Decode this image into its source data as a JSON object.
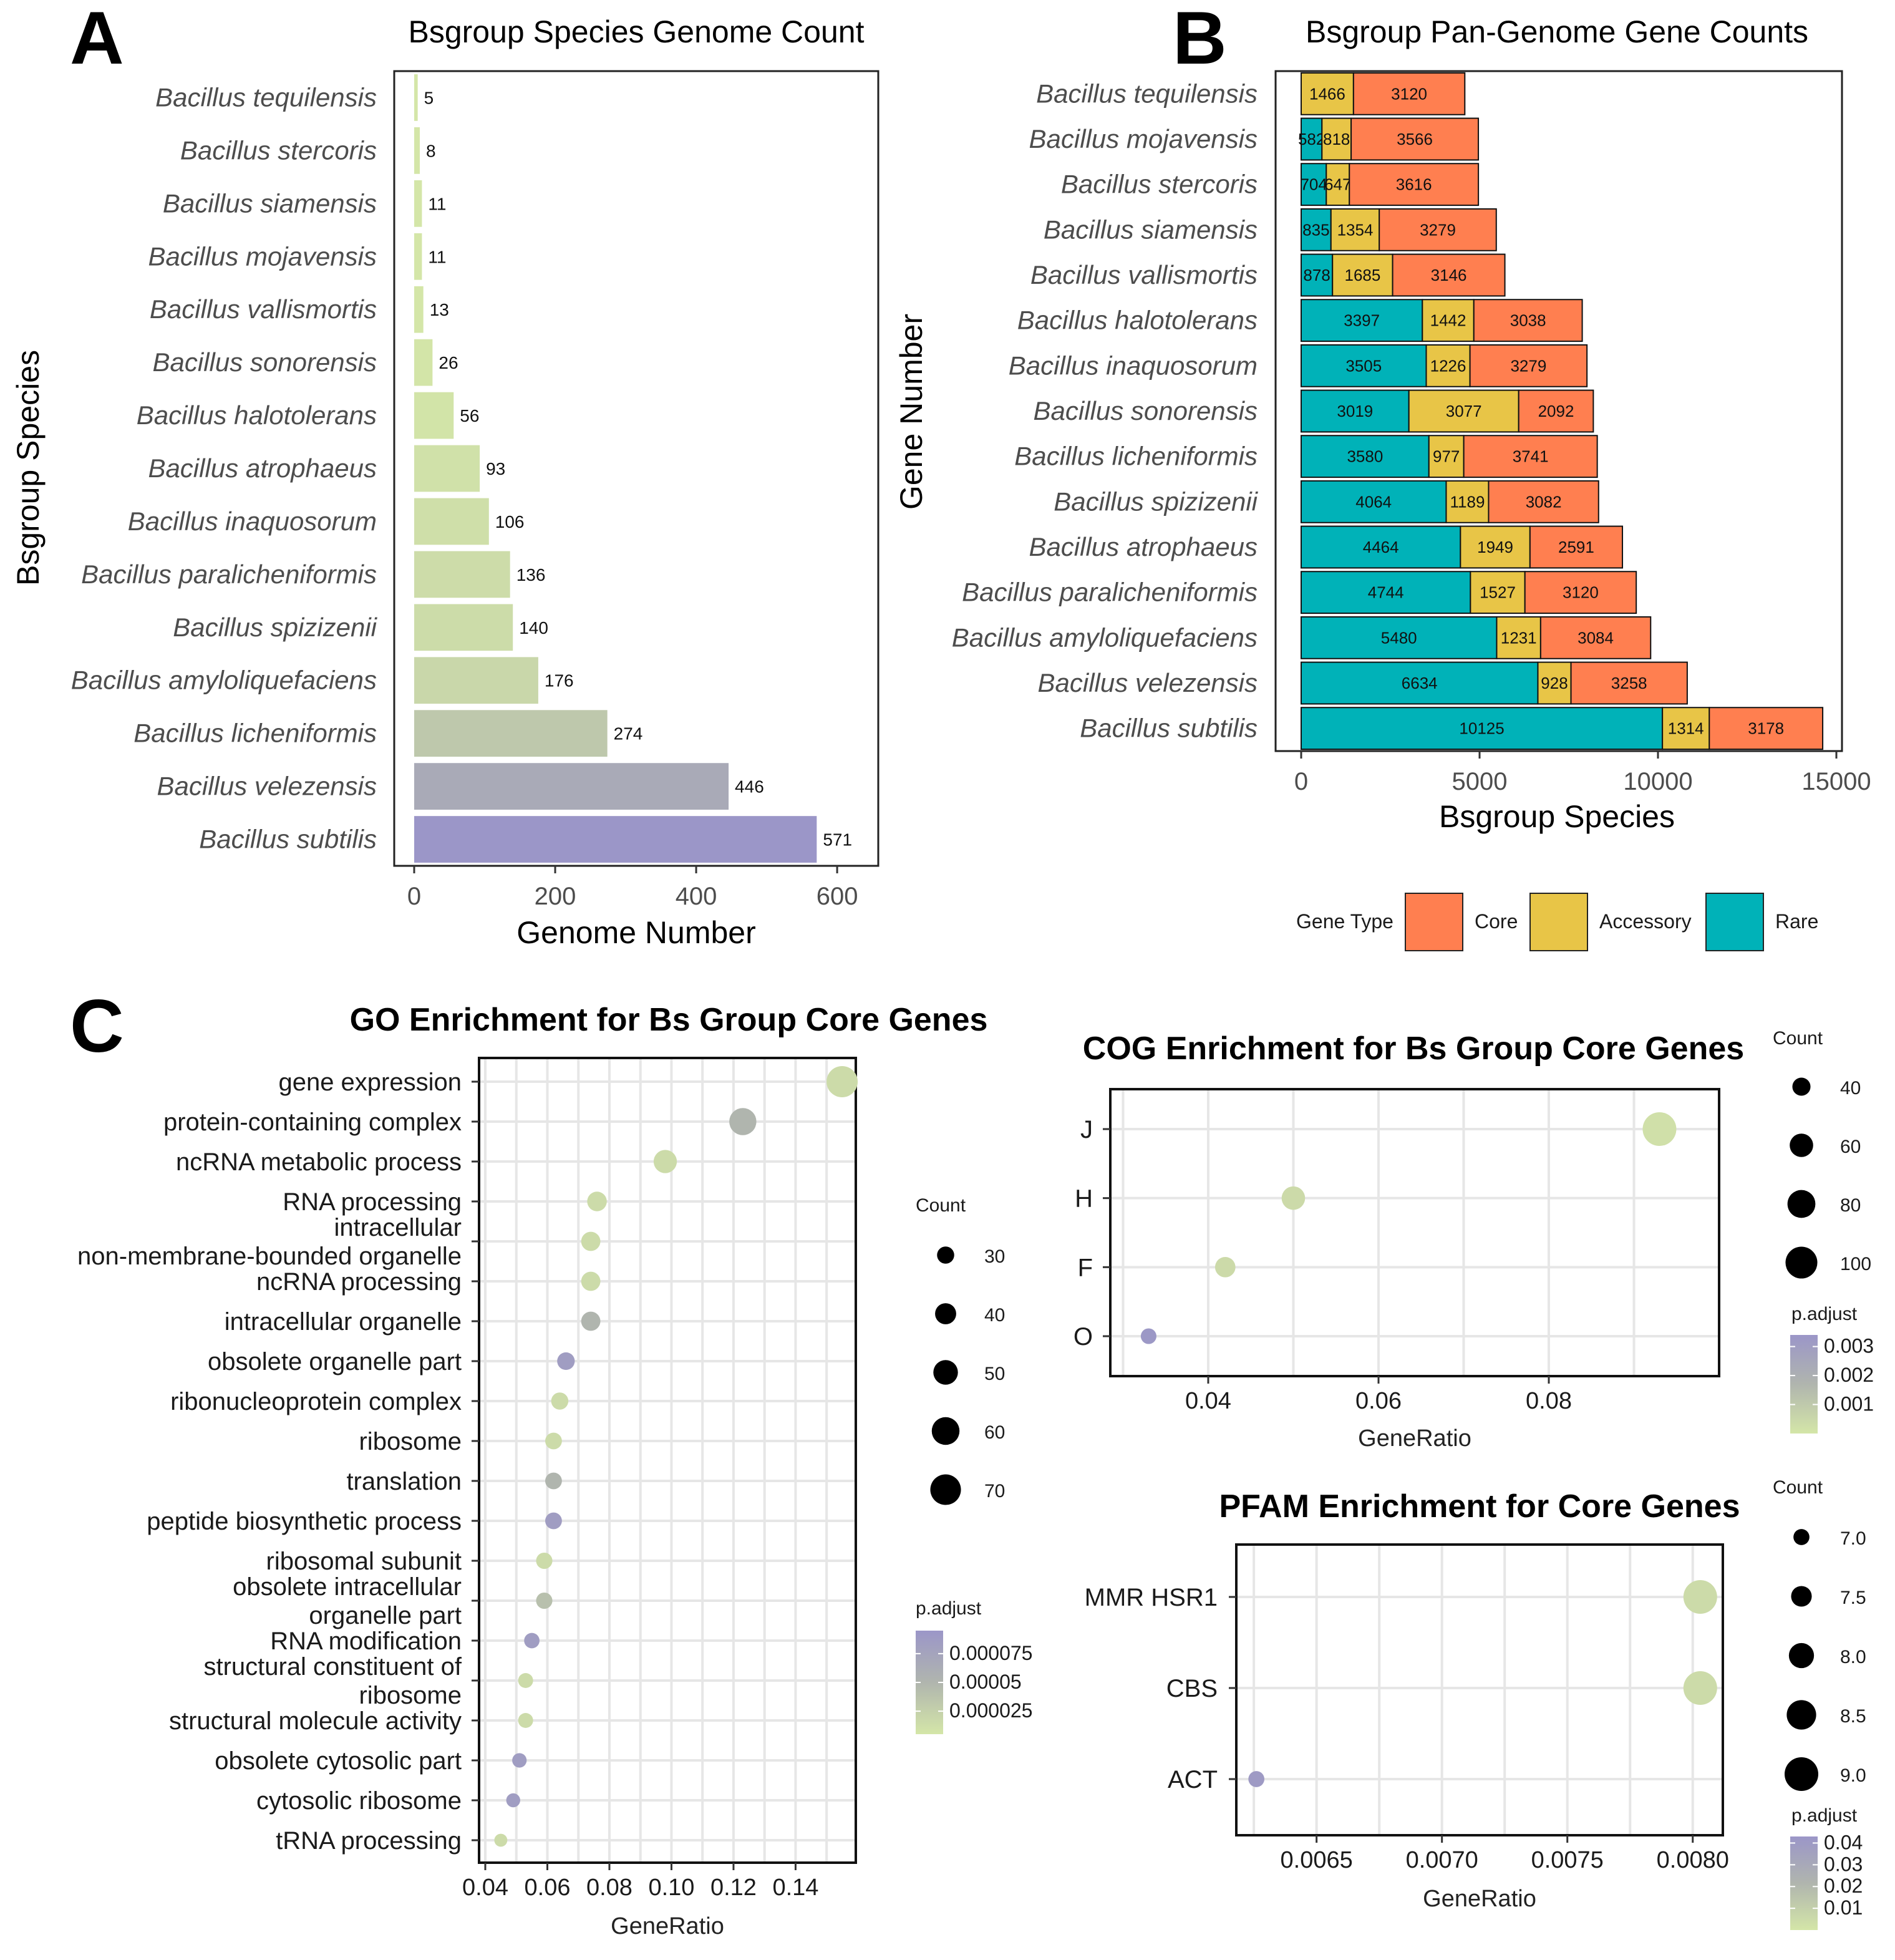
{
  "panel_letters": {
    "a": "A",
    "b": "B",
    "c": "C"
  },
  "colors": {
    "core": "#FF7F50",
    "accessory": "#E8C547",
    "rare": "#00B2B8",
    "grad_high": "#9B96C8",
    "grad_mid": "#B0B5AE",
    "grad_low": "#D4E6A8",
    "grid": "#e6e6e6"
  },
  "chart_data": [
    {
      "id": "A",
      "type": "bar",
      "orientation": "horizontal",
      "title": "Bsgroup Species Genome Count",
      "xlabel": "Genome Number",
      "ylabel": "Bsgroup Species",
      "xlim": [
        0,
        630
      ],
      "xticks": [
        0,
        200,
        400,
        600
      ],
      "categories": [
        "Bacillus tequilensis",
        "Bacillus stercoris",
        "Bacillus siamensis",
        "Bacillus mojavensis",
        "Bacillus vallismortis",
        "Bacillus sonorensis",
        "Bacillus halotolerans",
        "Bacillus atrophaeus",
        "Bacillus inaquosorum",
        "Bacillus paralicheniformis",
        "Bacillus spizizenii",
        "Bacillus amyloliquefaciens",
        "Bacillus licheniformis",
        "Bacillus velezensis",
        "Bacillus subtilis"
      ],
      "values": [
        5,
        8,
        11,
        11,
        13,
        26,
        56,
        93,
        106,
        136,
        140,
        176,
        274,
        446,
        571
      ]
    },
    {
      "id": "B",
      "type": "bar",
      "orientation": "horizontal",
      "stacked": true,
      "title": "Bsgroup Pan-Genome Gene Counts",
      "xlabel": "Bsgroup Species",
      "ylabel": "Gene Number",
      "xlim": [
        0,
        15000
      ],
      "xticks": [
        0,
        5000,
        10000,
        15000
      ],
      "categories": [
        "Bacillus tequilensis",
        "Bacillus mojavensis",
        "Bacillus stercoris",
        "Bacillus siamensis",
        "Bacillus vallismortis",
        "Bacillus halotolerans",
        "Bacillus inaquosorum",
        "Bacillus sonorensis",
        "Bacillus licheniformis",
        "Bacillus spizizenii",
        "Bacillus atrophaeus",
        "Bacillus paralicheniformis",
        "Bacillus amyloliquefaciens",
        "Bacillus velezensis",
        "Bacillus subtilis"
      ],
      "series": [
        {
          "name": "Rare",
          "values": [
            0,
            582,
            704,
            835,
            878,
            3397,
            3505,
            3019,
            3580,
            4064,
            4464,
            4744,
            5480,
            6634,
            10125
          ],
          "labels": [
            "0",
            "582",
            "704",
            "835",
            "878",
            "3397",
            "3505",
            "3019",
            "3580",
            "4064",
            "4464",
            "4744",
            "5480",
            "6634",
            "10125"
          ]
        },
        {
          "name": "Accessory",
          "values": [
            1466,
            818,
            647,
            1354,
            1685,
            1442,
            1226,
            3077,
            977,
            1189,
            1949,
            1527,
            1231,
            928,
            1314
          ],
          "labels": [
            "1466",
            "818",
            "647",
            "1354",
            "1685",
            "1442",
            "1226",
            "3077",
            "977",
            "1189",
            "1949",
            "1527",
            "1231",
            "928",
            "1314"
          ]
        },
        {
          "name": "Core",
          "values": [
            3120,
            3566,
            3616,
            3279,
            3146,
            3038,
            3279,
            2092,
            3741,
            3082,
            2591,
            3120,
            3084,
            3258,
            3178
          ],
          "labels": [
            "3120",
            "3566",
            "3616",
            "3279",
            "3146",
            "3038",
            "3279",
            "2092",
            "3741",
            "3082",
            "2591",
            "3120",
            "3084",
            "3258",
            "3178"
          ]
        }
      ],
      "legend": {
        "title": "Gene Type",
        "items": [
          "Core",
          "Accessory",
          "Rare"
        ],
        "position": "bottom"
      }
    },
    {
      "id": "C-GO",
      "type": "scatter",
      "title": "GO Enrichment for Bs Group Core Genes",
      "xlabel": "GeneRatio",
      "xlim": [
        0.04,
        0.157
      ],
      "xticks": [
        0.04,
        0.06,
        0.08,
        0.1,
        0.12,
        0.14
      ],
      "xtick_labels": [
        "0.04",
        "0.06",
        "0.08",
        "0.10",
        "0.12",
        "0.14"
      ],
      "terms": [
        [
          "gene expression"
        ],
        [
          "protein-containing complex"
        ],
        [
          "ncRNA metabolic process"
        ],
        [
          "RNA processing"
        ],
        [
          "intracellular",
          "non-membrane-bounded organelle"
        ],
        [
          "ncRNA processing"
        ],
        [
          "intracellular organelle"
        ],
        [
          "obsolete organelle part"
        ],
        [
          "ribonucleoprotein complex"
        ],
        [
          "ribosome"
        ],
        [
          "translation"
        ],
        [
          "peptide biosynthetic process"
        ],
        [
          "ribosomal subunit"
        ],
        [
          "obsolete intracellular",
          "organelle part"
        ],
        [
          "RNA modification"
        ],
        [
          "structural constituent of",
          "ribosome"
        ],
        [
          "structural molecule activity"
        ],
        [
          "obsolete cytosolic part"
        ],
        [
          "cytosolic ribosome"
        ],
        [
          "tRNA processing"
        ]
      ],
      "gene_ratio": [
        0.155,
        0.123,
        0.098,
        0.076,
        0.074,
        0.074,
        0.074,
        0.066,
        0.064,
        0.062,
        0.062,
        0.062,
        0.059,
        0.059,
        0.055,
        0.053,
        0.053,
        0.051,
        0.049,
        0.045
      ],
      "count": [
        72,
        58,
        46,
        36,
        35,
        35,
        35,
        31,
        30,
        29,
        29,
        29,
        28,
        28,
        26,
        25,
        25,
        24,
        23,
        21
      ],
      "p_adjust": [
        1.5e-05,
        5e-05,
        1.5e-05,
        1.5e-05,
        1.5e-05,
        1.5e-05,
        5e-05,
        8.5e-05,
        1.5e-05,
        1.5e-05,
        5e-05,
        8.5e-05,
        1.5e-05,
        4e-05,
        8.5e-05,
        1.5e-05,
        1.5e-05,
        8.5e-05,
        8.5e-05,
        1.5e-05
      ],
      "count_legend": {
        "title": "Count",
        "values": [
          30,
          40,
          50,
          60,
          70
        ],
        "labels": [
          "30",
          "40",
          "50",
          "60",
          "70"
        ]
      },
      "padj_legend": {
        "title": "p.adjust",
        "range": [
          5e-06,
          9.5e-05
        ],
        "ticks": [
          7.5e-05,
          5e-05,
          2.5e-05
        ],
        "labels": [
          "0.000075",
          "0.00005",
          "0.000025"
        ]
      }
    },
    {
      "id": "C-COG",
      "type": "scatter",
      "title": "COG Enrichment for Bs Group Core Genes",
      "xlabel": "GeneRatio",
      "xlim": [
        0.0285,
        0.1
      ],
      "xticks": [
        0.04,
        0.06,
        0.08
      ],
      "xtick_labels": [
        "0.04",
        "0.06",
        "0.08"
      ],
      "terms": [
        "J",
        "H",
        "F",
        "O"
      ],
      "gene_ratio": [
        0.093,
        0.05,
        0.042,
        0.033
      ],
      "count": [
        110,
        60,
        48,
        32
      ],
      "p_adjust": [
        0.0002,
        0.0004,
        0.0004,
        0.0033
      ],
      "count_legend": {
        "title": "Count",
        "values": [
          40,
          60,
          80,
          100
        ],
        "labels": [
          "40",
          "60",
          "80",
          "100"
        ]
      },
      "padj_legend": {
        "title": "p.adjust",
        "range": [
          0.0,
          0.0034
        ],
        "ticks": [
          0.003,
          0.002,
          0.001
        ],
        "labels": [
          "0.003",
          "0.002",
          "0.001"
        ]
      }
    },
    {
      "id": "C-PFAM",
      "type": "scatter",
      "title": "PFAM Enrichment for Core Genes",
      "xlabel": "GeneRatio",
      "xlim": [
        0.00618,
        0.00812
      ],
      "xticks": [
        0.0065,
        0.007,
        0.0075,
        0.008
      ],
      "xtick_labels": [
        "0.0065",
        "0.0070",
        "0.0075",
        "0.0080"
      ],
      "terms": [
        "MMR HSR1",
        "CBS",
        "ACT"
      ],
      "gene_ratio": [
        0.00803,
        0.00803,
        0.00626
      ],
      "count": [
        9,
        9,
        7
      ],
      "p_adjust": [
        0.005,
        0.005,
        0.04
      ],
      "count_legend": {
        "title": "Count",
        "values": [
          7.0,
          7.5,
          8.0,
          8.5,
          9.0
        ],
        "labels": [
          "7.0",
          "7.5",
          "8.0",
          "8.5",
          "9.0"
        ]
      },
      "padj_legend": {
        "title": "p.adjust",
        "range": [
          0.0,
          0.043
        ],
        "ticks": [
          0.04,
          0.03,
          0.02,
          0.01
        ],
        "labels": [
          "0.04",
          "0.03",
          "0.02",
          "0.01"
        ]
      }
    }
  ]
}
